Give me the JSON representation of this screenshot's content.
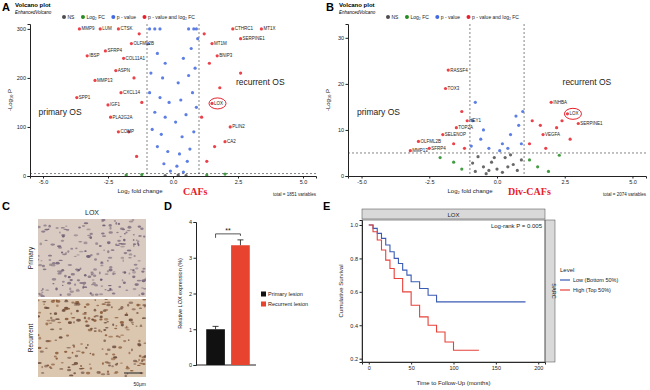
{
  "chart_data": [
    {
      "type": "scatter",
      "panel": "A",
      "title": "Volcano plot",
      "subtitle": "EnhancedVolcano",
      "x_label": "Log₂ fold change",
      "y_label": "-Log₁₀ P",
      "xlim": [
        -5.5,
        5.5
      ],
      "xticks": [
        {
          "value": -5,
          "label": "-5.0"
        },
        {
          "value": -2.5,
          "label": "-2.5"
        },
        {
          "value": 0,
          "label": "0.0"
        },
        {
          "value": 2.5,
          "label": "2.5"
        },
        {
          "value": 5,
          "label": "5.0"
        }
      ],
      "ylim": [
        0,
        310
      ],
      "yticks": [
        0,
        100,
        200,
        300
      ],
      "thresholds": {
        "x": [
          -1,
          1
        ],
        "y": 5
      },
      "annotations": [
        "primary OS",
        "recurrent OS"
      ],
      "caption": "CAFs",
      "note": "total = 1851 variables",
      "highlight": "LOX",
      "legend": "top",
      "series": [
        {
          "name": "NS",
          "color": "#4d4d4d",
          "x": [
            -0.3,
            0.2,
            0.5
          ],
          "values": [
            1,
            2,
            1
          ]
        },
        {
          "name": "Log₂ FC",
          "color": "#228b22",
          "x": [
            -1.8,
            -1.2,
            1.3,
            2.0
          ],
          "values": [
            2,
            3,
            2,
            4
          ]
        },
        {
          "name": "p - value",
          "color": "#4169e1",
          "x": [
            -0.9,
            -0.7,
            -0.5,
            0.6,
            0.8,
            0.9,
            -0.95,
            -0.6,
            -0.3,
            0.4,
            0.7,
            0.95,
            -0.85,
            -0.4,
            0.2,
            0.6,
            0.85,
            -0.9,
            -0.5,
            -0.15,
            0.3,
            0.75,
            -0.7,
            -0.3,
            0.1,
            0.5,
            0.9,
            -0.8,
            -0.45,
            0.35,
            0.8,
            -0.6,
            -0.2,
            0.25,
            0.65,
            -0.35,
            0.15,
            0.55,
            -0.1,
            0.4
          ],
          "values": [
            300,
            300,
            300,
            300,
            300,
            300,
            270,
            250,
            230,
            240,
            260,
            280,
            210,
            200,
            190,
            205,
            220,
            170,
            160,
            150,
            155,
            170,
            130,
            120,
            110,
            125,
            140,
            95,
            85,
            80,
            90,
            60,
            50,
            45,
            55,
            25,
            20,
            30,
            10,
            8
          ]
        },
        {
          "name": "p - value and log₂ FC",
          "color": "#e8202a",
          "x": [
            -3.6,
            -2.8,
            -2.1,
            -3.3,
            -2.6,
            -1.6,
            -1.9,
            -3.0,
            -2.2,
            -2.0,
            -3.7,
            -2.5,
            -2.4,
            -2.1,
            2.3,
            3.4,
            2.6,
            1.5,
            1.7,
            1.5,
            2.2,
            2.0,
            -1.3,
            -1.5,
            -1.2,
            -1.7,
            1.2,
            1.4,
            1.8,
            1.1,
            2.6,
            1.6,
            -1.4,
            1.3
          ],
          "values": [
            300,
            300,
            300,
            245,
            255,
            270,
            240,
            195,
            215,
            170,
            160,
            145,
            120,
            90,
            300,
            300,
            280,
            270,
            245,
            148,
            100,
            70,
            290,
            200,
            150,
            90,
            290,
            230,
            180,
            120,
            210,
            60,
            40,
            30
          ],
          "labels": [
            "MMP9",
            "LUM",
            "CTSK",
            "IBSP",
            "SFRP4",
            "OLFML2B",
            "COL11A1",
            "MMP13",
            "ASPN",
            "CXCL14",
            "SPP1",
            "IGF1",
            "PLA2G2A",
            "COMP",
            "CTHRC1",
            "MT1X",
            "SERPINE1",
            "MT1M",
            "BNIP3",
            "LOX",
            "PLIN2",
            "CA2",
            null,
            null,
            null,
            null,
            null,
            null,
            null,
            null,
            null,
            null,
            null,
            null
          ]
        }
      ]
    },
    {
      "type": "scatter",
      "panel": "B",
      "title": "Volcano plot",
      "subtitle": "EnhancedVolcano",
      "x_label": "Log₂ fold change",
      "y_label": "-Log₁₀ P",
      "xlim": [
        -5.5,
        5.5
      ],
      "xticks": [
        {
          "value": -5,
          "label": "-5.0"
        },
        {
          "value": -2.5,
          "label": "-2.5"
        },
        {
          "value": 0,
          "label": "0.0"
        },
        {
          "value": 2.5,
          "label": "2.5"
        },
        {
          "value": 5,
          "label": "5.0"
        }
      ],
      "ylim": [
        0,
        33
      ],
      "yticks": [
        0,
        10,
        20,
        30
      ],
      "thresholds": {
        "x": [
          -1,
          1
        ],
        "y": 5
      },
      "annotations": [
        "primary OS",
        "recurrent OS"
      ],
      "caption": "Div-CAFs",
      "note": "total = 2074 variables",
      "highlight": "LOX",
      "legend": "top",
      "series": [
        {
          "name": "NS",
          "color": "#4d4d4d",
          "x": [
            -0.8,
            -0.5,
            -0.2,
            0,
            0.3,
            0.6,
            0.9,
            -0.7,
            -0.4,
            0.2,
            0.5,
            -0.1,
            0.75,
            -0.9,
            0.4,
            -0.3
          ],
          "values": [
            1,
            2,
            3,
            1.5,
            4,
            2.5,
            3.5,
            4.2,
            0.5,
            0.8,
            4.6,
            4,
            1.2,
            2.8,
            2,
            1.2
          ]
        },
        {
          "name": "Log₂ FC",
          "color": "#228b22",
          "x": [
            -1.6,
            -1.3,
            -2.1,
            1.2,
            1.5,
            2.3,
            1.9
          ],
          "values": [
            3,
            1.5,
            4,
            3.5,
            2,
            4.5,
            1
          ]
        },
        {
          "name": "p - value",
          "color": "#4169e1",
          "x": [
            -0.9,
            -0.6,
            -0.3,
            0.2,
            0.5,
            0.8,
            0.95,
            -0.8,
            0.7,
            -0.5,
            0.4,
            0.9,
            -0.95,
            0.1
          ],
          "values": [
            12,
            8,
            6,
            7,
            9,
            11,
            14,
            16,
            13,
            10,
            6,
            7,
            6.5,
            5.5
          ]
        },
        {
          "name": "p - value and log₂ FC",
          "color": "#e8202a",
          "x": [
            -1.8,
            -1.9,
            -1.1,
            -1.5,
            -2.0,
            -2.9,
            -3.2,
            -2.5,
            2.0,
            2.6,
            3.0,
            1.7,
            -1.3,
            -1.6,
            -1.2,
            1.3,
            1.6,
            2.4,
            1.8,
            1.2,
            2.7,
            2.2
          ],
          "values": [
            23,
            19,
            12,
            10.5,
            9,
            7.5,
            5.5,
            6,
            16,
            13.5,
            11.4,
            9,
            14,
            7,
            6,
            12,
            11,
            12,
            6,
            7,
            8,
            10.5
          ],
          "labels": [
            "RASSF4",
            "TOX3",
            "HEY1",
            "TOP2A",
            "SELENOP",
            "OLFML2B",
            "MMP13",
            "SFRP4",
            "INHBA",
            "LOX",
            "SERPINE1",
            "VEGFA",
            null,
            null,
            null,
            null,
            null,
            null,
            null,
            null,
            null,
            null
          ]
        }
      ]
    },
    {
      "type": "bar",
      "panel": "D",
      "categories": [
        "Primary lesion",
        "Recurrent lesion"
      ],
      "values": [
        1.0,
        3.35
      ],
      "errors": [
        0.08,
        0.15
      ],
      "colors": [
        "#111111",
        "#e8432f"
      ],
      "y_label": "Relative LOX expression (%)",
      "ylim": [
        0,
        4
      ],
      "yticks": [
        0,
        1,
        2,
        3,
        4
      ],
      "significance": "**",
      "legend": "right",
      "tick_labels": "y"
    },
    {
      "type": "line",
      "panel": "E",
      "title": "LOX",
      "facet": "SARC",
      "annotation": "Log-rank P = 0.005",
      "x_label": "Time to Follow-Up (months)",
      "y_label": "Cumulative Survival",
      "xlim": [
        -8,
        208
      ],
      "xticks": [
        0,
        50,
        100,
        150,
        200
      ],
      "ylim": [
        0.18,
        1.03
      ],
      "yticks": [
        0.2,
        0.4,
        0.6,
        0.8,
        {
          "value": 1,
          "label": "1.0"
        }
      ],
      "line_style": "step",
      "legend": "right",
      "legend_title": "Level",
      "series": [
        {
          "name": "Low (Bottom 50%)",
          "color": "#3b5bb5",
          "x": [
            0,
            5,
            10,
            15,
            20,
            25,
            30,
            35,
            40,
            45,
            50,
            60,
            70,
            80,
            100,
            130,
            160,
            185
          ],
          "values": [
            1.0,
            0.98,
            0.95,
            0.92,
            0.88,
            0.84,
            0.8,
            0.77,
            0.73,
            0.7,
            0.66,
            0.62,
            0.58,
            0.54,
            0.54,
            0.54,
            0.54,
            0.54
          ]
        },
        {
          "name": "High (Top 50%)",
          "color": "#e8413a",
          "x": [
            0,
            5,
            10,
            15,
            20,
            25,
            30,
            40,
            50,
            60,
            70,
            80,
            90,
            100,
            110,
            130
          ],
          "values": [
            1.0,
            0.96,
            0.91,
            0.85,
            0.79,
            0.74,
            0.68,
            0.6,
            0.52,
            0.45,
            0.4,
            0.36,
            0.3,
            0.25,
            0.25,
            0.25
          ]
        }
      ]
    }
  ],
  "image_panel": {
    "panel": "C",
    "title": "LOX",
    "row_labels": [
      "Primary",
      "Recurrent"
    ],
    "scale_bar": "50μm"
  }
}
